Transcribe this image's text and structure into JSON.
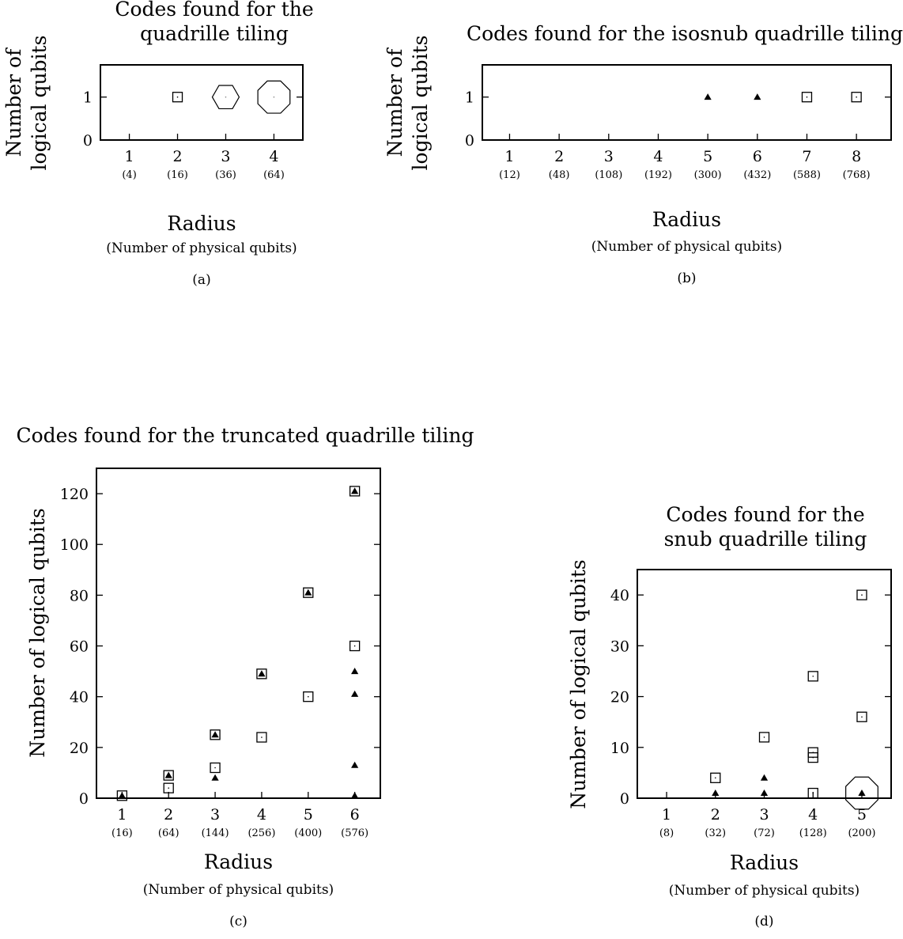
{
  "chart_data": [
    {
      "type": "scatter",
      "panel_label": "(a)",
      "title_lines": [
        "Codes found for the",
        "quadrille tiling"
      ],
      "ylabel_lines": [
        "Number of",
        "logical qubits"
      ],
      "xlabel": "Radius",
      "xlabel_sub": "(Number of physical qubits)",
      "x_ticks": [
        "1",
        "2",
        "3",
        "4"
      ],
      "x_tick_subs": [
        "(4)",
        "(16)",
        "(36)",
        "(64)"
      ],
      "y_ticks": [
        "0",
        "1"
      ],
      "xlim": [
        0.4,
        4.6
      ],
      "ylim": [
        0,
        1.75
      ],
      "grid": false,
      "markers": [
        {
          "x": 2,
          "y": 1,
          "shape": "square"
        },
        {
          "x": 3,
          "y": 1,
          "shape": "hexagon"
        },
        {
          "x": 4,
          "y": 1,
          "shape": "octagon"
        }
      ]
    },
    {
      "type": "scatter",
      "panel_label": "(b)",
      "title_lines": [
        "Codes found for the isosnub quadrille tiling"
      ],
      "ylabel_lines": [
        "Number of",
        "logical qubits"
      ],
      "xlabel": "Radius",
      "xlabel_sub": "(Number of physical qubits)",
      "x_ticks": [
        "1",
        "2",
        "3",
        "4",
        "5",
        "6",
        "7",
        "8"
      ],
      "x_tick_subs": [
        "(12)",
        "(48)",
        "(108)",
        "(192)",
        "(300)",
        "(432)",
        "(588)",
        "(768)"
      ],
      "y_ticks": [
        "0",
        "1"
      ],
      "xlim": [
        0.45,
        8.7
      ],
      "ylim": [
        0,
        1.75
      ],
      "grid": false,
      "markers": [
        {
          "x": 5,
          "y": 1,
          "shape": "triangle"
        },
        {
          "x": 6,
          "y": 1,
          "shape": "triangle"
        },
        {
          "x": 7,
          "y": 1,
          "shape": "square"
        },
        {
          "x": 8,
          "y": 1,
          "shape": "square"
        }
      ]
    },
    {
      "type": "scatter",
      "panel_label": "(c)",
      "title_lines": [
        "Codes found for the truncated quadrille tiling"
      ],
      "ylabel_lines": [
        "Number of logical qubits"
      ],
      "xlabel": "Radius",
      "xlabel_sub": "(Number of physical qubits)",
      "x_ticks": [
        "1",
        "2",
        "3",
        "4",
        "5",
        "6"
      ],
      "x_tick_subs": [
        "(16)",
        "(64)",
        "(144)",
        "(256)",
        "(400)",
        "(576)"
      ],
      "y_ticks": [
        "0",
        "20",
        "40",
        "60",
        "80",
        "100",
        "120"
      ],
      "xlim": [
        0.45,
        6.55
      ],
      "ylim": [
        0,
        130
      ],
      "grid": false,
      "markers": [
        {
          "x": 1,
          "y": 1,
          "shape": "square"
        },
        {
          "x": 1,
          "y": 1,
          "shape": "triangle"
        },
        {
          "x": 2,
          "y": 4,
          "shape": "square"
        },
        {
          "x": 2,
          "y": 9,
          "shape": "square"
        },
        {
          "x": 2,
          "y": 9,
          "shape": "triangle"
        },
        {
          "x": 3,
          "y": 8,
          "shape": "triangle"
        },
        {
          "x": 3,
          "y": 12,
          "shape": "square"
        },
        {
          "x": 3,
          "y": 25,
          "shape": "square"
        },
        {
          "x": 3,
          "y": 25,
          "shape": "triangle"
        },
        {
          "x": 4,
          "y": 24,
          "shape": "square"
        },
        {
          "x": 4,
          "y": 49,
          "shape": "square"
        },
        {
          "x": 4,
          "y": 49,
          "shape": "triangle"
        },
        {
          "x": 5,
          "y": 40,
          "shape": "square"
        },
        {
          "x": 5,
          "y": 81,
          "shape": "square"
        },
        {
          "x": 5,
          "y": 81,
          "shape": "triangle"
        },
        {
          "x": 6,
          "y": 1,
          "shape": "triangle"
        },
        {
          "x": 6,
          "y": 13,
          "shape": "triangle"
        },
        {
          "x": 6,
          "y": 41,
          "shape": "triangle"
        },
        {
          "x": 6,
          "y": 50,
          "shape": "triangle"
        },
        {
          "x": 6,
          "y": 60,
          "shape": "square"
        },
        {
          "x": 6,
          "y": 121,
          "shape": "square"
        },
        {
          "x": 6,
          "y": 121,
          "shape": "triangle"
        }
      ]
    },
    {
      "type": "scatter",
      "panel_label": "(d)",
      "title_lines": [
        "Codes found for the",
        "snub quadrille tiling"
      ],
      "ylabel_lines": [
        "Number of logical qubits"
      ],
      "xlabel": "Radius",
      "xlabel_sub": "(Number of physical qubits)",
      "x_ticks": [
        "1",
        "2",
        "3",
        "4",
        "5"
      ],
      "x_tick_subs": [
        "(8)",
        "(32)",
        "(72)",
        "(128)",
        "(200)"
      ],
      "y_ticks": [
        "0",
        "10",
        "20",
        "30",
        "40"
      ],
      "xlim": [
        0.4,
        5.6
      ],
      "ylim": [
        0,
        45
      ],
      "grid": false,
      "markers": [
        {
          "x": 2,
          "y": 1,
          "shape": "triangle"
        },
        {
          "x": 2,
          "y": 4,
          "shape": "square"
        },
        {
          "x": 3,
          "y": 1,
          "shape": "triangle"
        },
        {
          "x": 3,
          "y": 4,
          "shape": "triangle"
        },
        {
          "x": 3,
          "y": 12,
          "shape": "square"
        },
        {
          "x": 4,
          "y": 1,
          "shape": "square"
        },
        {
          "x": 4,
          "y": 8,
          "shape": "square"
        },
        {
          "x": 4,
          "y": 9,
          "shape": "square"
        },
        {
          "x": 4,
          "y": 24,
          "shape": "square"
        },
        {
          "x": 5,
          "y": 1,
          "shape": "octagon"
        },
        {
          "x": 5,
          "y": 1,
          "shape": "triangle"
        },
        {
          "x": 5,
          "y": 16,
          "shape": "square"
        },
        {
          "x": 5,
          "y": 40,
          "shape": "square"
        }
      ]
    }
  ]
}
